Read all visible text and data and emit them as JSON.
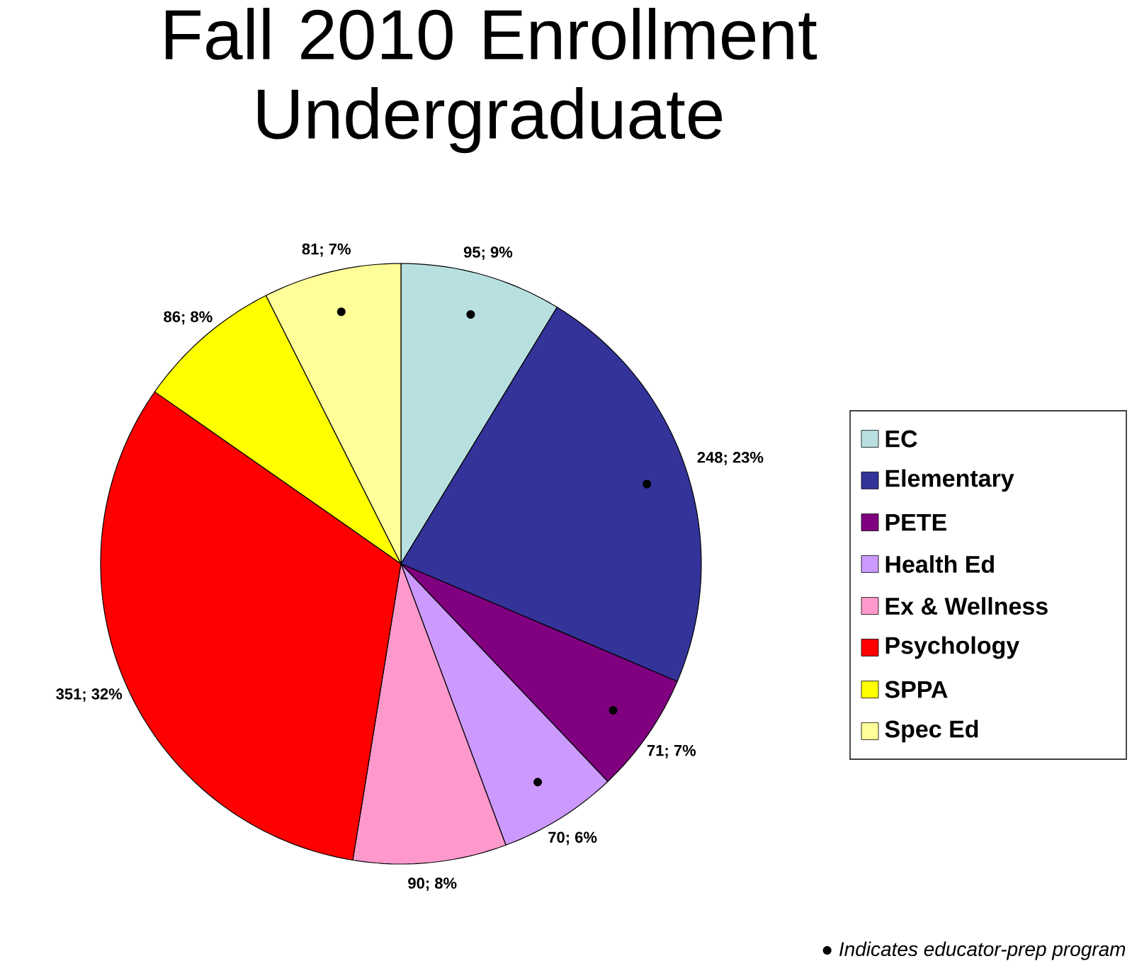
{
  "chart_data": {
    "type": "pie",
    "title": "Fall 2010 Enrollment Undergraduate",
    "categories": [
      "EC",
      "Elementary",
      "PETE",
      "Health Ed",
      "Ex & Wellness",
      "Psychology",
      "SPPA",
      "Spec Ed"
    ],
    "values": [
      95,
      248,
      71,
      70,
      90,
      351,
      86,
      81
    ],
    "colors": [
      "#b8e0e0",
      "#333399",
      "#800080",
      "#cc99ff",
      "#ff99cc",
      "#ff0000",
      "#ffff00",
      "#ffff99"
    ],
    "value_labels": [
      "95; 9%",
      "248; 23%",
      "71; 7%",
      "70; 6%",
      "90; 8%",
      "351; 32%",
      "86; 8%",
      "81; 7%"
    ],
    "legend": "right",
    "annotations": [
      "● *Indicates educator-prep program*",
      {
        "text": "●",
        "x": "EC"
      },
      {
        "text": "●",
        "x": "Elementary"
      },
      {
        "text": "●",
        "x": "PETE"
      },
      {
        "text": "●",
        "x": "Health Ed"
      },
      {
        "text": "●",
        "x": "Spec Ed"
      }
    ]
  }
}
